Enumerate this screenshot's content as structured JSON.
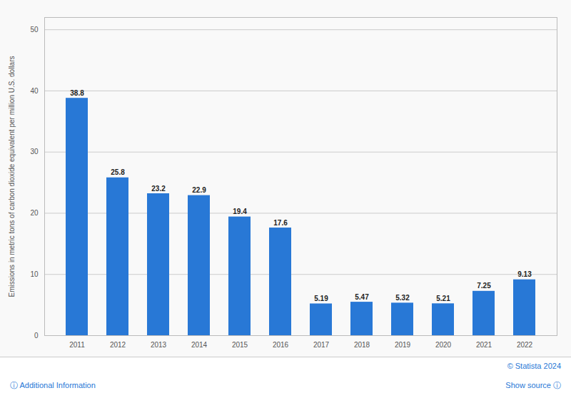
{
  "chart_data": {
    "type": "bar",
    "categories": [
      "2011",
      "2012",
      "2013",
      "2014",
      "2015",
      "2016",
      "2017",
      "2018",
      "2019",
      "2020",
      "2021",
      "2022"
    ],
    "values": [
      38.8,
      25.8,
      23.2,
      22.9,
      19.4,
      17.6,
      5.19,
      5.47,
      5.32,
      5.21,
      7.25,
      9.13
    ],
    "color": "#2878d6",
    "ylabel": "Emissions in metric tons of carbon dioxide equivalent per million U.S. dollars",
    "ylim": [
      0,
      52
    ],
    "yticks": [
      0,
      10,
      20,
      30,
      40,
      50
    ],
    "grid": true,
    "data_labels": true,
    "annotations": [
      "© Statista 2024",
      "ⓘ Additional Information",
      "Show source ⓘ"
    ]
  }
}
